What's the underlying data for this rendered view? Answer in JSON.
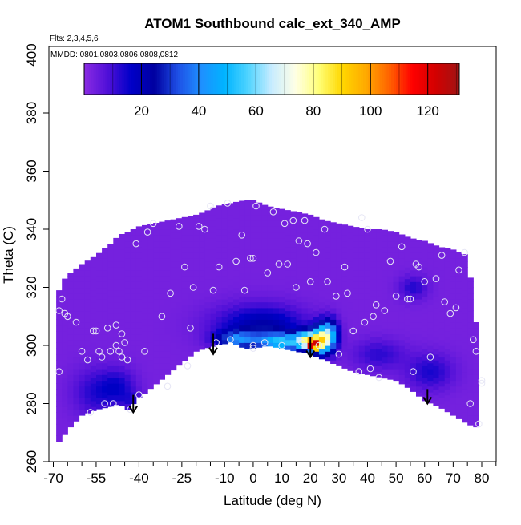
{
  "chart_data": {
    "type": "heatmap",
    "title": "ATOM1 Southbound calc_ext_340_AMP",
    "subtitle_flts": "Flts: 2,3,4,5,6",
    "subtitle_mmdd": "MMDD: 0801,0803,0806,0808,0812",
    "xlabel": "Latitude (deg N)",
    "ylabel": "Theta (C)",
    "xlim": [
      -70,
      85
    ],
    "ylim": [
      260,
      403
    ],
    "x_tick_labels": [
      {
        "value": -70,
        "label": "-70"
      },
      {
        "value": -55,
        "label": "-55"
      },
      {
        "value": -40,
        "label": "-40"
      },
      {
        "value": -25,
        "label": "-25"
      },
      {
        "value": -10,
        "label": "-10"
      },
      {
        "value": 0,
        "label": "0"
      },
      {
        "value": 10,
        "label": "10"
      },
      {
        "value": 20,
        "label": "20"
      },
      {
        "value": 30,
        "label": "30"
      },
      {
        "value": 40,
        "label": "40"
      },
      {
        "value": 50,
        "label": "50"
      },
      {
        "value": 60,
        "label": "60"
      },
      {
        "value": 70,
        "label": "70"
      },
      {
        "value": 80,
        "label": "80"
      }
    ],
    "x_minor_ticks": [
      -65,
      -60,
      -50,
      -45,
      -35,
      -30,
      -20,
      -15,
      -5,
      5,
      15,
      25,
      35,
      45,
      55,
      65,
      75,
      85
    ],
    "y_ticks": [
      260,
      280,
      300,
      320,
      340,
      360,
      380,
      400
    ],
    "colorbar": {
      "min": 0,
      "max": 131,
      "ticks": [
        20,
        40,
        60,
        80,
        100,
        120
      ],
      "colors": [
        "#8a2be2",
        "#5010d8",
        "#0000c8",
        "#0000a0",
        "#1e50e6",
        "#1e90ff",
        "#00b4ff",
        "#50d4ff",
        "#c8ecff",
        "#ffffe6",
        "#ffff78",
        "#ffd700",
        "#ffaa00",
        "#ff6400",
        "#ff0000",
        "#d20000",
        "#a01414"
      ]
    },
    "profile": {
      "comment_values": "upper and lower theta bound of the measured field along latitude",
      "lat": [
        -69,
        -67,
        -64,
        -60,
        -55,
        -50,
        -47,
        -44,
        -40,
        -35,
        -30,
        -25,
        -20,
        -17,
        -13,
        -8,
        -3,
        0,
        5,
        10,
        15,
        20,
        25,
        30,
        35,
        40,
        45,
        50,
        55,
        60,
        65,
        70,
        75,
        78
      ],
      "top": [
        316,
        322,
        325,
        328,
        331,
        335,
        338,
        339,
        341,
        342,
        343,
        344,
        345,
        346,
        348,
        349,
        350,
        350,
        348,
        347,
        346,
        345,
        343,
        342,
        341,
        340,
        340,
        339,
        337,
        336,
        334,
        333,
        331,
        308
      ],
      "bottom": [
        266,
        268,
        272,
        276,
        278,
        279,
        280,
        278,
        282,
        286,
        290,
        294,
        298,
        299,
        300,
        301,
        299,
        299,
        300,
        299,
        298,
        297,
        295,
        293,
        291,
        290,
        289,
        288,
        285,
        281,
        279,
        276,
        273,
        272
      ]
    },
    "hotspots": [
      {
        "lat": -55,
        "theta": 284,
        "value": 10,
        "sx": 8,
        "sy": 8
      },
      {
        "lat": -47,
        "theta": 286,
        "value": 10,
        "sx": 6,
        "sy": 6
      },
      {
        "lat": -2,
        "theta": 307,
        "value": 12,
        "sx": 14,
        "sy": 7
      },
      {
        "lat": 8,
        "theta": 306,
        "value": 12,
        "sx": 12,
        "sy": 7
      },
      {
        "lat": -6,
        "theta": 302,
        "value": 30,
        "sx": 7,
        "sy": 3
      },
      {
        "lat": 10,
        "theta": 301,
        "value": 42,
        "sx": 8,
        "sy": 3
      },
      {
        "lat": 19,
        "theta": 302,
        "value": 58,
        "sx": 4,
        "sy": 3
      },
      {
        "lat": 24,
        "theta": 302,
        "value": 62,
        "sx": 3.5,
        "sy": 5
      },
      {
        "lat": 21,
        "theta": 300,
        "value": 74,
        "sx": 2,
        "sy": 1.6
      },
      {
        "lat": 27,
        "theta": 304,
        "value": 32,
        "sx": 3,
        "sy": 5
      },
      {
        "lat": 44,
        "theta": 297,
        "value": 9,
        "sx": 9,
        "sy": 5
      },
      {
        "lat": 62,
        "theta": 291,
        "value": 11,
        "sx": 8,
        "sy": 6
      },
      {
        "lat": 56,
        "theta": 320,
        "value": 10,
        "sx": 5,
        "sy": 4
      },
      {
        "lat": -42,
        "theta": 281,
        "value": 7,
        "sx": 4,
        "sy": 3
      }
    ],
    "points": [
      [
        -68,
        291
      ],
      [
        -68,
        312
      ],
      [
        -67,
        316
      ],
      [
        -66,
        311
      ],
      [
        -65,
        310
      ],
      [
        -62,
        308
      ],
      [
        -60,
        298
      ],
      [
        -58,
        295
      ],
      [
        -57,
        277
      ],
      [
        -56,
        305
      ],
      [
        -55,
        305
      ],
      [
        -54,
        298
      ],
      [
        -53,
        296
      ],
      [
        -52,
        280
      ],
      [
        -51,
        306
      ],
      [
        -50,
        298
      ],
      [
        -49,
        280
      ],
      [
        -48,
        307
      ],
      [
        -48,
        300
      ],
      [
        -47,
        298
      ],
      [
        -46,
        296
      ],
      [
        -46,
        304
      ],
      [
        -45,
        301
      ],
      [
        -44,
        295
      ],
      [
        -43,
        278
      ],
      [
        -41,
        335
      ],
      [
        -40,
        283
      ],
      [
        -38,
        298
      ],
      [
        -37,
        339
      ],
      [
        -35,
        342
      ],
      [
        -32,
        310
      ],
      [
        -30,
        286
      ],
      [
        -29,
        318
      ],
      [
        -26,
        341
      ],
      [
        -24,
        327
      ],
      [
        -23,
        293
      ],
      [
        -22,
        306
      ],
      [
        -21,
        320
      ],
      [
        -19,
        341
      ],
      [
        -17,
        340
      ],
      [
        -15,
        348
      ],
      [
        -14,
        319
      ],
      [
        -13,
        301
      ],
      [
        -12,
        327
      ],
      [
        -9,
        349
      ],
      [
        -8,
        302
      ],
      [
        -6,
        329
      ],
      [
        -4,
        338
      ],
      [
        -3,
        319
      ],
      [
        -1,
        330
      ],
      [
        0,
        330
      ],
      [
        0,
        300
      ],
      [
        0,
        299
      ],
      [
        1,
        348
      ],
      [
        4,
        301
      ],
      [
        5,
        325
      ],
      [
        7,
        346
      ],
      [
        9,
        328
      ],
      [
        10,
        300
      ],
      [
        11,
        342
      ],
      [
        12,
        328
      ],
      [
        14,
        343
      ],
      [
        15,
        320
      ],
      [
        16,
        336
      ],
      [
        17,
        301
      ],
      [
        18,
        343
      ],
      [
        19,
        335
      ],
      [
        20,
        322
      ],
      [
        22,
        332
      ],
      [
        23,
        300
      ],
      [
        25,
        340
      ],
      [
        26,
        322
      ],
      [
        29,
        317
      ],
      [
        30,
        297
      ],
      [
        32,
        327
      ],
      [
        33,
        318
      ],
      [
        35,
        305
      ],
      [
        37,
        291
      ],
      [
        38,
        344
      ],
      [
        39,
        308
      ],
      [
        40,
        340
      ],
      [
        41,
        292
      ],
      [
        42,
        310
      ],
      [
        43,
        314
      ],
      [
        44,
        289
      ],
      [
        46,
        312
      ],
      [
        48,
        329
      ],
      [
        50,
        317
      ],
      [
        52,
        334
      ],
      [
        54,
        316
      ],
      [
        55,
        316
      ],
      [
        56,
        291
      ],
      [
        57,
        328
      ],
      [
        58,
        327
      ],
      [
        60,
        322
      ],
      [
        62,
        296
      ],
      [
        64,
        323
      ],
      [
        66,
        331
      ],
      [
        67,
        315
      ],
      [
        69,
        311
      ],
      [
        71,
        313
      ],
      [
        72,
        326
      ],
      [
        74,
        332
      ],
      [
        76,
        280
      ],
      [
        77,
        302
      ],
      [
        78,
        298
      ],
      [
        79,
        273
      ],
      [
        80,
        287
      ],
      [
        80,
        288
      ]
    ],
    "arrows": [
      {
        "lat": -42,
        "theta_start": 283,
        "theta_end": 277
      },
      {
        "lat": -14,
        "theta_start": 304,
        "theta_end": 297
      },
      {
        "lat": 20,
        "theta_start": 303,
        "theta_end": 296
      },
      {
        "lat": 61,
        "theta_start": 285,
        "theta_end": 280
      }
    ]
  }
}
